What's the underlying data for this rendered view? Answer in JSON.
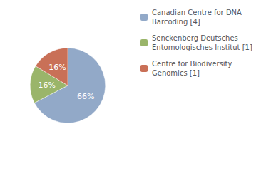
{
  "chart_data": {
    "type": "pie",
    "categories": [
      "Canadian Centre for DNA\nBarcoding [4]",
      "Senckenberg Deutsches\nEntomologisches Institut [1]",
      "Centre for Biodiversity\nGenomics [1]"
    ],
    "values": [
      66,
      16,
      16
    ],
    "value_labels": [
      "66%",
      "16%",
      "16%"
    ],
    "colors": [
      "#92a9c8",
      "#9ab56a",
      "#c97057"
    ],
    "data_labels": true,
    "legend": "upper right"
  }
}
